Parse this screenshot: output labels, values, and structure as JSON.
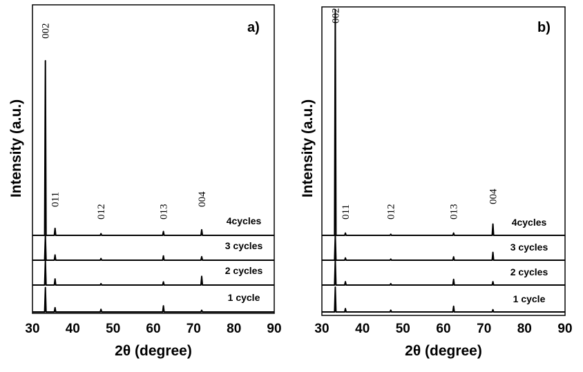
{
  "chart_data": [
    {
      "type": "line",
      "panel_label": "a)",
      "xlabel": "2θ (degree)",
      "ylabel": "Intensity (a.u.)",
      "xlim": [
        30,
        90
      ],
      "xticks": [
        "30",
        "40",
        "50",
        "60",
        "70",
        "80",
        "90"
      ],
      "grid": false,
      "peak_labels": [
        {
          "text": "002",
          "x": 33.2
        },
        {
          "text": "011",
          "x": 35.6
        },
        {
          "text": "012",
          "x": 47.0
        },
        {
          "text": "013",
          "x": 62.5
        },
        {
          "text": "004",
          "x": 72.0
        }
      ],
      "series": [
        {
          "name": "4cycles",
          "peaks": [
            [
              33.2,
              100
            ],
            [
              35.6,
              4.0
            ],
            [
              47.0,
              1.0
            ],
            [
              62.5,
              2.2
            ],
            [
              72.0,
              3.2
            ]
          ]
        },
        {
          "name": "3 cycles",
          "peaks": [
            [
              33.2,
              14
            ],
            [
              35.6,
              3.0
            ],
            [
              47.0,
              1.0
            ],
            [
              62.5,
              2.5
            ],
            [
              72.0,
              2.0
            ]
          ]
        },
        {
          "name": "2 cycles",
          "peaks": [
            [
              33.2,
              14
            ],
            [
              35.6,
              3.5
            ],
            [
              47.0,
              0.8
            ],
            [
              62.5,
              1.8
            ],
            [
              72.0,
              5.0
            ]
          ]
        },
        {
          "name": "1 cycle",
          "peaks": [
            [
              33.2,
              14
            ],
            [
              35.6,
              2.5
            ],
            [
              47.0,
              1.5
            ],
            [
              62.5,
              3.5
            ],
            [
              72.0,
              1.0
            ]
          ]
        }
      ]
    },
    {
      "type": "line",
      "panel_label": "b)",
      "xlabel": "2θ (degree)",
      "ylabel": "Intensity (a.u.)",
      "xlim": [
        30,
        90
      ],
      "xticks": [
        "30",
        "40",
        "50",
        "60",
        "70",
        "80",
        "90"
      ],
      "grid": false,
      "peak_labels": [
        {
          "text": "002",
          "x": 33.3
        },
        {
          "text": "011",
          "x": 35.8
        },
        {
          "text": "012",
          "x": 47.0
        },
        {
          "text": "013",
          "x": 62.5
        },
        {
          "text": "004",
          "x": 72.2
        }
      ],
      "series": [
        {
          "name": "4cycles",
          "peaks": [
            [
              33.3,
              100
            ],
            [
              35.8,
              1.0
            ],
            [
              47.0,
              0.5
            ],
            [
              62.5,
              1.0
            ],
            [
              72.2,
              5.0
            ]
          ]
        },
        {
          "name": "3 cycles",
          "peaks": [
            [
              33.3,
              11
            ],
            [
              35.8,
              1.0
            ],
            [
              47.0,
              0.5
            ],
            [
              62.5,
              1.5
            ],
            [
              72.2,
              3.5
            ]
          ]
        },
        {
          "name": "2 cycles",
          "peaks": [
            [
              33.3,
              11
            ],
            [
              35.8,
              1.5
            ],
            [
              47.0,
              0.6
            ],
            [
              62.5,
              2.5
            ],
            [
              72.2,
              1.5
            ]
          ]
        },
        {
          "name": "1 cycle",
          "peaks": [
            [
              33.3,
              11
            ],
            [
              35.8,
              1.5
            ],
            [
              47.0,
              0.8
            ],
            [
              62.5,
              2.5
            ],
            [
              72.2,
              1.0
            ]
          ]
        }
      ]
    }
  ]
}
